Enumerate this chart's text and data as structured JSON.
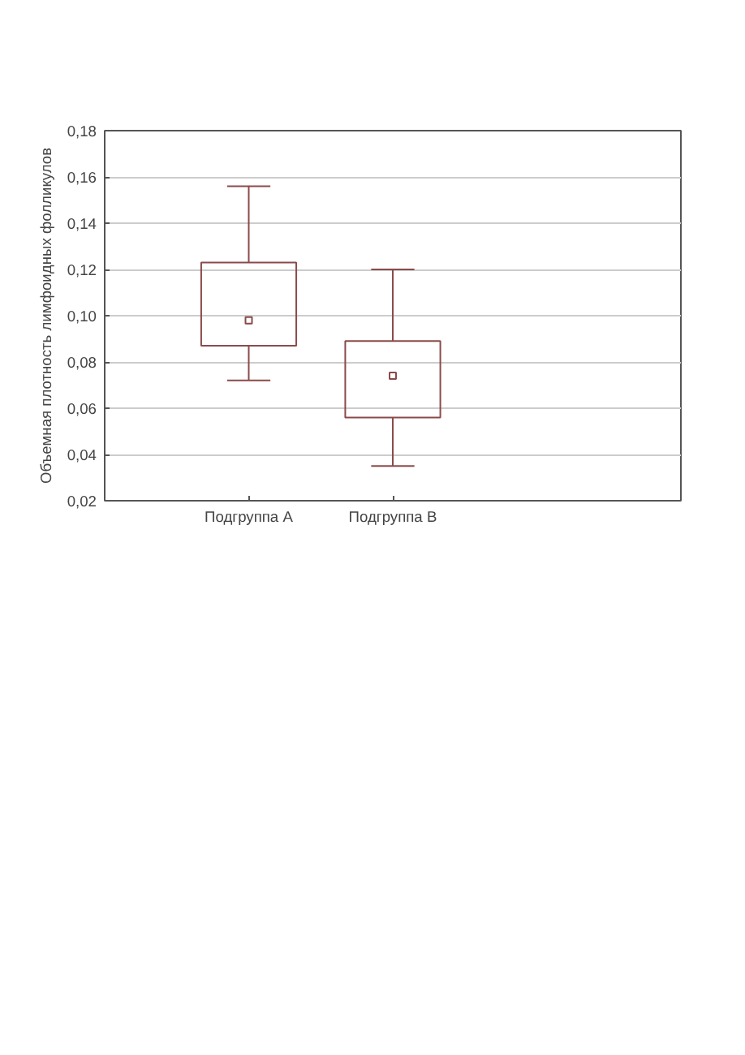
{
  "chart_data": {
    "type": "box",
    "ylabel": "Объемная плотность лимфоидных фолликулов",
    "categories": [
      "Подгруппа A",
      "Подгруппа B"
    ],
    "boxes": [
      {
        "low": 0.072,
        "q1": 0.087,
        "median": 0.098,
        "q3": 0.123,
        "high": 0.156
      },
      {
        "low": 0.035,
        "q1": 0.056,
        "median": 0.074,
        "q3": 0.089,
        "high": 0.12
      }
    ],
    "color": "#8b4a4a",
    "ylim": [
      0.02,
      0.18
    ],
    "yticks": [
      {
        "value": 0.02,
        "label": "0,02"
      },
      {
        "value": 0.04,
        "label": "0,04"
      },
      {
        "value": 0.06,
        "label": "0,06"
      },
      {
        "value": 0.08,
        "label": "0,08"
      },
      {
        "value": 0.1,
        "label": "0,10"
      },
      {
        "value": 0.12,
        "label": "0,12"
      },
      {
        "value": 0.14,
        "label": "0,14"
      },
      {
        "value": 0.16,
        "label": "0,16"
      },
      {
        "value": 0.18,
        "label": "0,18"
      }
    ],
    "grid": "y",
    "marker": "square"
  }
}
